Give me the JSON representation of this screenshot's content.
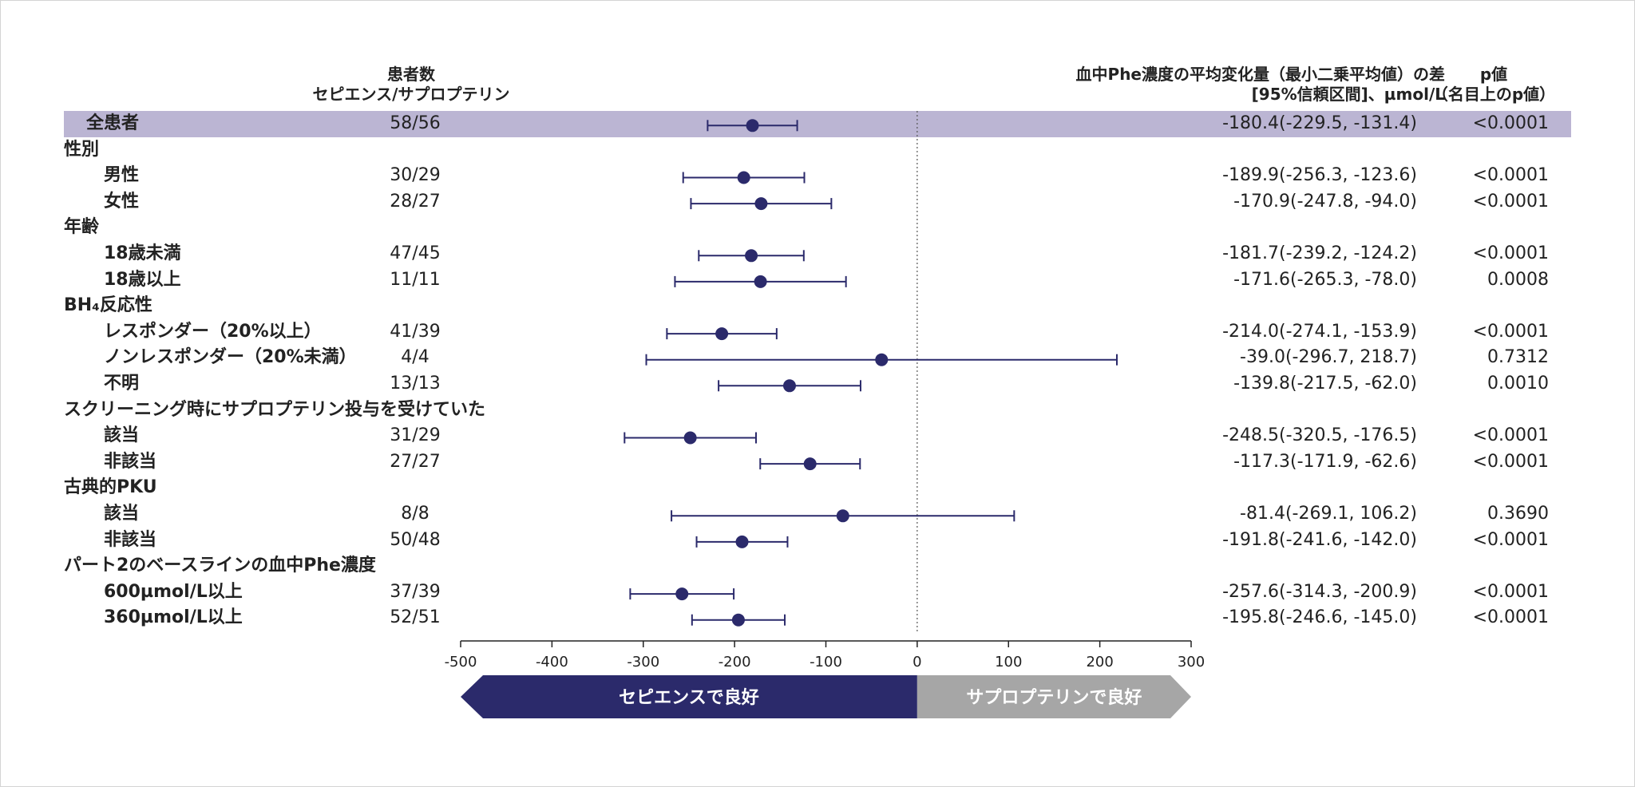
{
  "headers": {
    "n_line1": "患者数",
    "n_line2": "セピエンス/サプロプテリン",
    "diff_line1": "血中Phe濃度の平均変化量（最小二乗平均値）の差",
    "diff_line2": "[95%信頼区間]、µmol/L",
    "p_line1": "p値",
    "p_line2": "（名目上のp値）"
  },
  "arrows": {
    "left": "セピエンスで良好",
    "right": "サプロプテリンで良好"
  },
  "colors": {
    "point": "#2b2a6b",
    "overall_band": "#bbb5d3",
    "category_band": "#e7e5f2",
    "left_arrow": "#2b2a6b",
    "right_arrow": "#a6a6a6"
  },
  "chart_data": {
    "type": "forest",
    "xlim": [
      -500,
      300
    ],
    "xticks": [
      -500,
      -400,
      -300,
      -200,
      -100,
      0,
      100,
      200,
      300
    ],
    "reference_line": 0,
    "rows": [
      {
        "type": "overall",
        "label": "全患者",
        "n": "58/56",
        "est": -180.4,
        "lo": -229.5,
        "hi": -131.4,
        "ci": "-180.4(-229.5, -131.4)",
        "p": "<0.0001"
      },
      {
        "type": "category",
        "label": "性別"
      },
      {
        "type": "sub",
        "label": "男性",
        "n": "30/29",
        "est": -189.9,
        "lo": -256.3,
        "hi": -123.6,
        "ci": "-189.9(-256.3, -123.6)",
        "p": "<0.0001"
      },
      {
        "type": "sub",
        "label": "女性",
        "n": "28/27",
        "est": -170.9,
        "lo": -247.8,
        "hi": -94.0,
        "ci": "-170.9(-247.8, -94.0)",
        "p": "<0.0001"
      },
      {
        "type": "category",
        "label": "年齢"
      },
      {
        "type": "sub",
        "label": "18歳未満",
        "n": "47/45",
        "est": -181.7,
        "lo": -239.2,
        "hi": -124.2,
        "ci": "-181.7(-239.2, -124.2)",
        "p": "<0.0001"
      },
      {
        "type": "sub",
        "label": "18歳以上",
        "n": "11/11",
        "est": -171.6,
        "lo": -265.3,
        "hi": -78.0,
        "ci": "-171.6(-265.3, -78.0)",
        "p": "0.0008"
      },
      {
        "type": "category",
        "label": "BH₄反応性"
      },
      {
        "type": "sub",
        "label": "レスポンダー（20%以上）",
        "n": "41/39",
        "est": -214.0,
        "lo": -274.1,
        "hi": -153.9,
        "ci": "-214.0(-274.1, -153.9)",
        "p": "<0.0001"
      },
      {
        "type": "sub",
        "label": "ノンレスポンダー（20%未満）",
        "n": "4/4",
        "est": -39.0,
        "lo": -296.7,
        "hi": 218.7,
        "ci": "-39.0(-296.7, 218.7)",
        "p": "0.7312"
      },
      {
        "type": "sub",
        "label": "不明",
        "n": "13/13",
        "est": -139.8,
        "lo": -217.5,
        "hi": -62.0,
        "ci": "-139.8(-217.5, -62.0)",
        "p": "0.0010"
      },
      {
        "type": "category",
        "label": "スクリーニング時にサプロプテリン投与を受けていた"
      },
      {
        "type": "sub",
        "label": "該当",
        "n": "31/29",
        "est": -248.5,
        "lo": -320.5,
        "hi": -176.5,
        "ci": "-248.5(-320.5, -176.5)",
        "p": "<0.0001"
      },
      {
        "type": "sub",
        "label": "非該当",
        "n": "27/27",
        "est": -117.3,
        "lo": -171.9,
        "hi": -62.6,
        "ci": "-117.3(-171.9, -62.6)",
        "p": "<0.0001"
      },
      {
        "type": "category",
        "label": "古典的PKU"
      },
      {
        "type": "sub",
        "label": "該当",
        "n": "8/8",
        "est": -81.4,
        "lo": -269.1,
        "hi": 106.2,
        "ci": "-81.4(-269.1, 106.2)",
        "p": "0.3690"
      },
      {
        "type": "sub",
        "label": "非該当",
        "n": "50/48",
        "est": -191.8,
        "lo": -241.6,
        "hi": -142.0,
        "ci": "-191.8(-241.6, -142.0)",
        "p": "<0.0001"
      },
      {
        "type": "category",
        "label": "パート2のベースラインの血中Phe濃度"
      },
      {
        "type": "sub",
        "label": "600µmol/L以上",
        "n": "37/39",
        "est": -257.6,
        "lo": -314.3,
        "hi": -200.9,
        "ci": "-257.6(-314.3, -200.9)",
        "p": "<0.0001"
      },
      {
        "type": "sub",
        "label": "360µmol/L以上",
        "n": "52/51",
        "est": -195.8,
        "lo": -246.6,
        "hi": -145.0,
        "ci": "-195.8(-246.6, -145.0)",
        "p": "<0.0001"
      }
    ]
  }
}
